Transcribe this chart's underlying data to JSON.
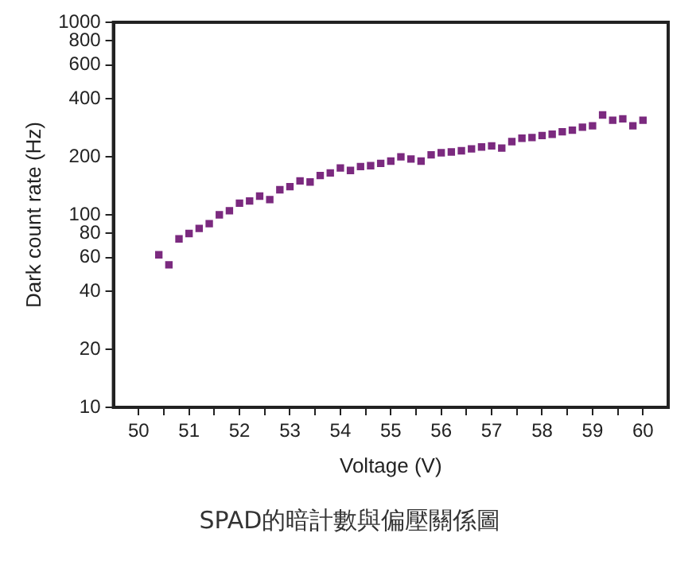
{
  "chart_data": {
    "type": "scatter",
    "xlabel": "Voltage (V)",
    "ylabel": "Dark count rate (Hz)",
    "annotations": [
      "SPAD的暗計數與偏壓關係圖"
    ],
    "x": [
      50.4,
      50.6,
      50.8,
      51.0,
      51.2,
      51.4,
      51.6,
      51.8,
      52.0,
      52.2,
      52.4,
      52.6,
      52.8,
      53.0,
      53.2,
      53.4,
      53.6,
      53.8,
      54.0,
      54.2,
      54.4,
      54.6,
      54.8,
      55.0,
      55.2,
      55.4,
      55.6,
      55.8,
      56.0,
      56.2,
      56.4,
      56.6,
      56.8,
      57.0,
      57.2,
      57.4,
      57.6,
      57.8,
      58.0,
      58.2,
      58.4,
      58.6,
      58.8,
      59.0,
      59.2,
      59.4,
      59.6,
      59.8,
      60.0
    ],
    "series": [
      {
        "color": "#7b2a7f",
        "values": [
          62,
          55,
          75,
          80,
          85,
          90,
          100,
          105,
          115,
          118,
          125,
          120,
          135,
          140,
          150,
          148,
          160,
          165,
          175,
          170,
          178,
          180,
          185,
          190,
          200,
          195,
          190,
          205,
          210,
          212,
          215,
          220,
          225,
          228,
          222,
          240,
          250,
          252,
          258,
          262,
          270,
          275,
          285,
          290,
          330,
          310,
          315,
          290,
          310
        ]
      }
    ],
    "xlim": [
      49.5,
      60.5
    ],
    "xticks": [
      50,
      {
        "value": 50.5,
        "label": null
      },
      51,
      {
        "value": 51.5,
        "label": null
      },
      52,
      {
        "value": 52.5,
        "label": null
      },
      53,
      {
        "value": 53.5,
        "label": null
      },
      54,
      {
        "value": 54.5,
        "label": null
      },
      55,
      {
        "value": 55.5,
        "label": null
      },
      56,
      {
        "value": 56.5,
        "label": null
      },
      57,
      {
        "value": 57.5,
        "label": null
      },
      58,
      {
        "value": 58.5,
        "label": null
      },
      59,
      {
        "value": 59.5,
        "label": null
      },
      60
    ],
    "ylim": [
      10,
      1000
    ],
    "yticks": [
      10,
      20,
      40,
      60,
      80,
      100,
      200,
      400,
      600,
      800,
      1000
    ],
    "log": "y",
    "grid": false,
    "legend": false,
    "marker": "square"
  }
}
